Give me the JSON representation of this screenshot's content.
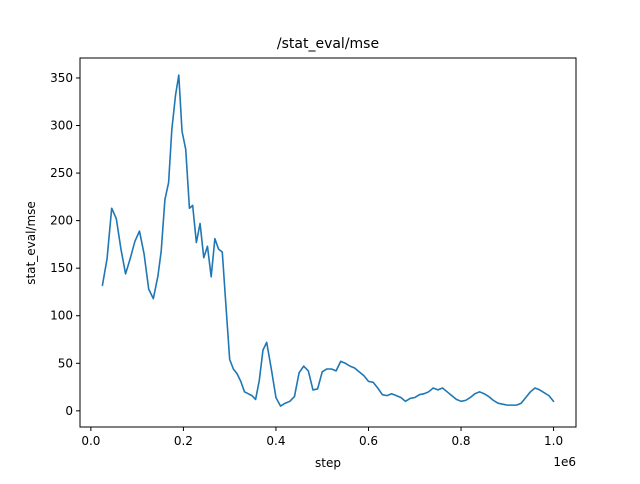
{
  "chart_data": {
    "type": "line",
    "title": "/stat_eval/mse",
    "xlabel": "step",
    "ylabel": "stat_eval/mse",
    "x_offset_label": "1e6",
    "xlim": [
      -0.0235,
      1.0485
    ],
    "ylim": [
      -17,
      371
    ],
    "x_ticks": [
      0.0,
      0.2,
      0.4,
      0.6,
      0.8,
      1.0
    ],
    "x_tick_labels": [
      "0.0",
      "0.2",
      "0.4",
      "0.6",
      "0.8",
      "1.0"
    ],
    "y_ticks": [
      0,
      50,
      100,
      150,
      200,
      250,
      300,
      350
    ],
    "y_tick_labels": [
      "0",
      "50",
      "100",
      "150",
      "200",
      "250",
      "300",
      "350"
    ],
    "grid": false,
    "series": [
      {
        "color": "#1f77b4",
        "x": [
          0.025,
          0.035,
          0.045,
          0.055,
          0.065,
          0.075,
          0.085,
          0.095,
          0.105,
          0.115,
          0.125,
          0.135,
          0.145,
          0.152,
          0.16,
          0.168,
          0.175,
          0.183,
          0.19,
          0.197,
          0.205,
          0.213,
          0.22,
          0.228,
          0.236,
          0.244,
          0.252,
          0.26,
          0.268,
          0.276,
          0.284,
          0.292,
          0.3,
          0.308,
          0.316,
          0.324,
          0.332,
          0.34,
          0.348,
          0.356,
          0.364,
          0.372,
          0.38,
          0.39,
          0.4,
          0.41,
          0.42,
          0.43,
          0.44,
          0.45,
          0.46,
          0.47,
          0.48,
          0.49,
          0.5,
          0.51,
          0.52,
          0.53,
          0.54,
          0.55,
          0.56,
          0.57,
          0.58,
          0.59,
          0.6,
          0.61,
          0.62,
          0.63,
          0.64,
          0.65,
          0.66,
          0.67,
          0.68,
          0.69,
          0.7,
          0.71,
          0.72,
          0.73,
          0.74,
          0.75,
          0.76,
          0.77,
          0.78,
          0.79,
          0.8,
          0.81,
          0.82,
          0.83,
          0.84,
          0.85,
          0.86,
          0.87,
          0.88,
          0.89,
          0.9,
          0.91,
          0.92,
          0.93,
          0.94,
          0.95,
          0.96,
          0.97,
          0.98,
          0.99,
          1.0
        ],
        "y": [
          132,
          160,
          213,
          202,
          170,
          144,
          160,
          178,
          189,
          165,
          128,
          118,
          142,
          168,
          222,
          240,
          296,
          332,
          353,
          294,
          275,
          213,
          216,
          177,
          197,
          161,
          173,
          141,
          181,
          170,
          167,
          110,
          54,
          44,
          39,
          31,
          20,
          18,
          16,
          12,
          32,
          64,
          72,
          44,
          14,
          5,
          8,
          10,
          15,
          40,
          47,
          42,
          22,
          23,
          41,
          44,
          44,
          42,
          52,
          50,
          47,
          45,
          41,
          37,
          31,
          30,
          24,
          17,
          16,
          18,
          16,
          14,
          10,
          13,
          14,
          17,
          18,
          20,
          24,
          22,
          24,
          20,
          16,
          12,
          10,
          11,
          14,
          18,
          20,
          18,
          15,
          11,
          8,
          7,
          6,
          6,
          6,
          8,
          14,
          20,
          24,
          22,
          19,
          16,
          10
        ]
      }
    ]
  }
}
